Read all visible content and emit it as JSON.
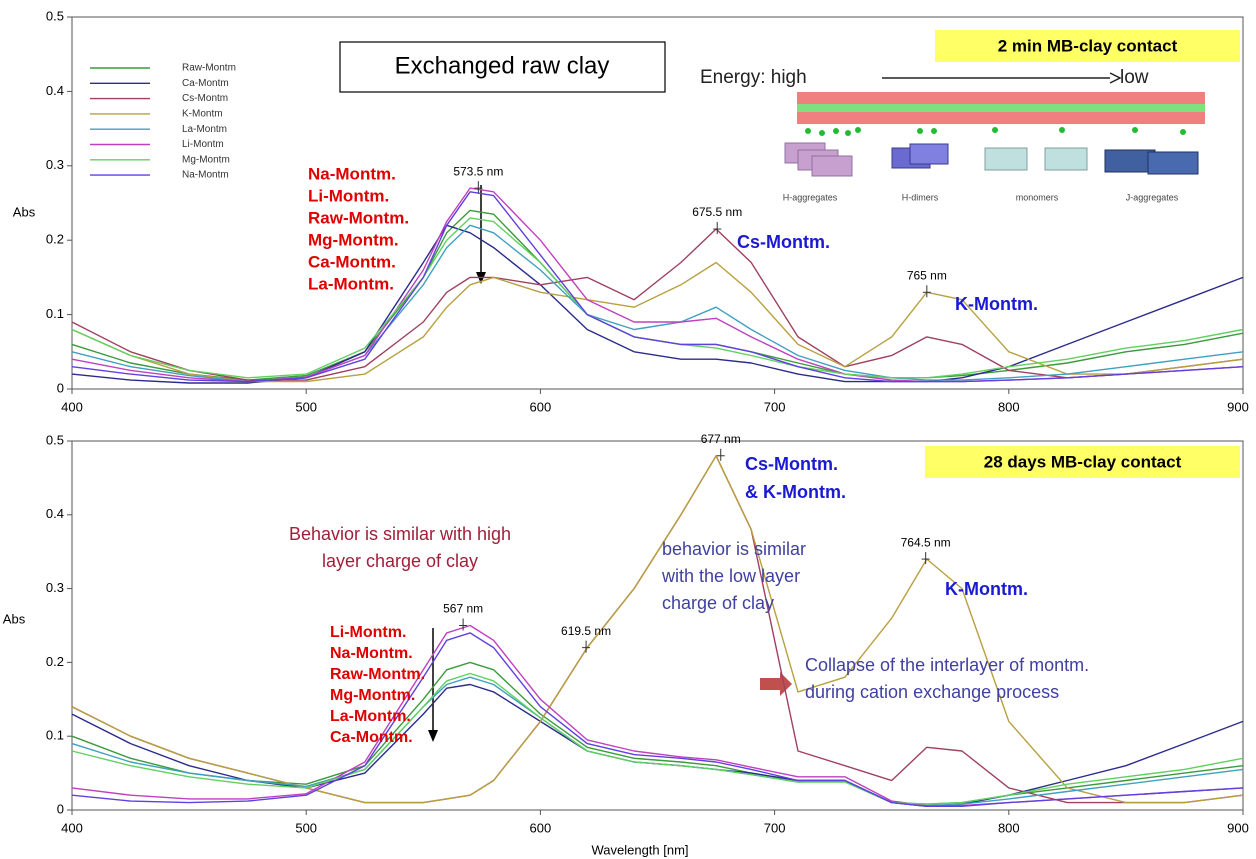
{
  "chart_data": [
    {
      "type": "line",
      "title": "Exchanged raw clay",
      "badge": "2 min MB-clay contact",
      "ylabel": "Abs",
      "xlim": [
        400,
        900
      ],
      "ylim": [
        0,
        0.5
      ],
      "xticks": [
        400,
        500,
        600,
        700,
        800,
        900
      ],
      "yticks": [
        0,
        0.1,
        0.2,
        0.3,
        0.4,
        0.5
      ],
      "x": [
        400,
        425,
        450,
        475,
        500,
        525,
        550,
        560,
        570,
        580,
        600,
        620,
        640,
        660,
        675,
        690,
        710,
        730,
        750,
        765,
        780,
        800,
        825,
        850,
        875,
        900
      ],
      "series": [
        {
          "name": "Raw-Montm",
          "color": "#3c9a3c",
          "values": [
            0.06,
            0.035,
            0.02,
            0.012,
            0.018,
            0.05,
            0.15,
            0.21,
            0.24,
            0.235,
            0.17,
            0.1,
            0.07,
            0.06,
            0.06,
            0.05,
            0.035,
            0.02,
            0.015,
            0.015,
            0.018,
            0.025,
            0.035,
            0.05,
            0.06,
            0.075
          ]
        },
        {
          "name": "Ca-Montm",
          "color": "#2b2b8c",
          "values": [
            0.02,
            0.012,
            0.008,
            0.008,
            0.015,
            0.05,
            0.17,
            0.22,
            0.21,
            0.19,
            0.14,
            0.08,
            0.05,
            0.04,
            0.04,
            0.035,
            0.02,
            0.01,
            0.01,
            0.01,
            0.015,
            0.03,
            0.06,
            0.09,
            0.12,
            0.15
          ]
        },
        {
          "name": "Cs-Montm",
          "color": "#a04060",
          "values": [
            0.09,
            0.05,
            0.025,
            0.012,
            0.012,
            0.03,
            0.09,
            0.13,
            0.15,
            0.15,
            0.14,
            0.15,
            0.12,
            0.17,
            0.215,
            0.17,
            0.07,
            0.03,
            0.045,
            0.07,
            0.06,
            0.025,
            0.015,
            0.02,
            0.03,
            0.04
          ]
        },
        {
          "name": "K-Montm",
          "color": "#b8a040",
          "values": [
            0.08,
            0.045,
            0.02,
            0.01,
            0.01,
            0.02,
            0.07,
            0.11,
            0.14,
            0.15,
            0.13,
            0.12,
            0.11,
            0.14,
            0.17,
            0.13,
            0.06,
            0.03,
            0.07,
            0.13,
            0.12,
            0.05,
            0.02,
            0.02,
            0.03,
            0.04
          ]
        },
        {
          "name": "La-Montm",
          "color": "#40a0c0",
          "values": [
            0.05,
            0.03,
            0.018,
            0.01,
            0.016,
            0.045,
            0.14,
            0.19,
            0.22,
            0.21,
            0.16,
            0.1,
            0.08,
            0.09,
            0.11,
            0.08,
            0.045,
            0.025,
            0.015,
            0.012,
            0.012,
            0.015,
            0.02,
            0.03,
            0.04,
            0.05
          ]
        },
        {
          "name": "Li-Montm",
          "color": "#c040c0",
          "values": [
            0.04,
            0.025,
            0.015,
            0.01,
            0.016,
            0.045,
            0.16,
            0.225,
            0.27,
            0.265,
            0.2,
            0.12,
            0.09,
            0.09,
            0.095,
            0.07,
            0.04,
            0.02,
            0.012,
            0.01,
            0.01,
            0.012,
            0.015,
            0.02,
            0.025,
            0.03
          ]
        },
        {
          "name": "Mg-Montm",
          "color": "#60d060",
          "values": [
            0.08,
            0.045,
            0.025,
            0.015,
            0.02,
            0.055,
            0.15,
            0.2,
            0.23,
            0.225,
            0.17,
            0.1,
            0.07,
            0.06,
            0.055,
            0.045,
            0.03,
            0.02,
            0.015,
            0.015,
            0.02,
            0.03,
            0.04,
            0.055,
            0.065,
            0.08
          ]
        },
        {
          "name": "Na-Montm",
          "color": "#6040e0",
          "values": [
            0.03,
            0.02,
            0.012,
            0.01,
            0.015,
            0.04,
            0.15,
            0.22,
            0.265,
            0.26,
            0.18,
            0.1,
            0.07,
            0.06,
            0.06,
            0.05,
            0.03,
            0.015,
            0.01,
            0.01,
            0.01,
            0.012,
            0.015,
            0.02,
            0.025,
            0.03
          ]
        }
      ],
      "peaks": [
        {
          "x": 573.5,
          "y": 0.27,
          "label": "573.5 nm"
        },
        {
          "x": 675.5,
          "y": 0.215,
          "label": "675.5 nm"
        },
        {
          "x": 765,
          "y": 0.13,
          "label": "765 nm"
        }
      ],
      "notes": [
        {
          "lines": [
            "Na-Montm.",
            "Li-Montm.",
            "Raw-Montm.",
            "Mg-Montm.",
            "Ca-Montm.",
            "La-Montm."
          ],
          "color": "#e00000"
        },
        {
          "lines": [
            "Cs-Montm."
          ],
          "color": "#1a1ad0"
        },
        {
          "lines": [
            "K-Montm."
          ],
          "color": "#1a1ad0"
        },
        {
          "lines": [
            "Energy: high"
          ],
          "color": "#222222"
        },
        {
          "lines": [
            "low"
          ],
          "color": "#222222"
        },
        {
          "lines": [
            "H-aggregates"
          ],
          "color": "#444444"
        },
        {
          "lines": [
            "H-dimers"
          ],
          "color": "#444444"
        },
        {
          "lines": [
            "monomers"
          ],
          "color": "#444444"
        },
        {
          "lines": [
            "J-aggregates"
          ],
          "color": "#444444"
        }
      ]
    },
    {
      "type": "line",
      "badge": "28 days MB-clay contact",
      "ylabel": "Abs",
      "xlabel": "Wavelength [nm]",
      "xlim": [
        400,
        900
      ],
      "ylim": [
        0,
        0.5
      ],
      "xticks": [
        400,
        500,
        600,
        700,
        800,
        900
      ],
      "yticks": [
        0,
        0.1,
        0.2,
        0.3,
        0.4,
        0.5
      ],
      "x": [
        400,
        425,
        450,
        475,
        500,
        525,
        550,
        560,
        570,
        580,
        600,
        620,
        640,
        660,
        675,
        690,
        710,
        730,
        750,
        765,
        780,
        800,
        825,
        850,
        875,
        900
      ],
      "series": [
        {
          "color": "#3c9a3c",
          "values": [
            0.1,
            0.07,
            0.05,
            0.04,
            0.035,
            0.06,
            0.15,
            0.19,
            0.2,
            0.19,
            0.13,
            0.085,
            0.07,
            0.065,
            0.06,
            0.05,
            0.04,
            0.04,
            0.01,
            0.008,
            0.01,
            0.02,
            0.03,
            0.04,
            0.05,
            0.06
          ]
        },
        {
          "color": "#2b2b8c",
          "values": [
            0.13,
            0.09,
            0.06,
            0.04,
            0.03,
            0.05,
            0.13,
            0.165,
            0.17,
            0.16,
            0.12,
            0.08,
            0.065,
            0.06,
            0.055,
            0.05,
            0.04,
            0.04,
            0.01,
            0.005,
            0.008,
            0.02,
            0.04,
            0.06,
            0.09,
            0.12
          ]
        },
        {
          "color": "#a04060",
          "values": [
            0.14,
            0.1,
            0.07,
            0.05,
            0.03,
            0.01,
            0.01,
            0.015,
            0.02,
            0.04,
            0.12,
            0.22,
            0.3,
            0.4,
            0.48,
            0.38,
            0.08,
            0.06,
            0.04,
            0.085,
            0.08,
            0.03,
            0.01,
            0.01,
            0.01,
            0.02
          ]
        },
        {
          "color": "#b8a040",
          "values": [
            0.14,
            0.1,
            0.07,
            0.05,
            0.03,
            0.01,
            0.01,
            0.015,
            0.02,
            0.04,
            0.12,
            0.22,
            0.3,
            0.4,
            0.48,
            0.38,
            0.16,
            0.18,
            0.26,
            0.34,
            0.3,
            0.12,
            0.03,
            0.01,
            0.01,
            0.02
          ]
        },
        {
          "color": "#40a0c0",
          "values": [
            0.09,
            0.065,
            0.05,
            0.04,
            0.032,
            0.055,
            0.14,
            0.17,
            0.18,
            0.17,
            0.125,
            0.08,
            0.065,
            0.06,
            0.055,
            0.048,
            0.038,
            0.04,
            0.01,
            0.006,
            0.008,
            0.015,
            0.025,
            0.035,
            0.045,
            0.055
          ]
        },
        {
          "color": "#c040c0",
          "values": [
            0.03,
            0.02,
            0.015,
            0.015,
            0.022,
            0.065,
            0.19,
            0.24,
            0.25,
            0.23,
            0.15,
            0.095,
            0.08,
            0.072,
            0.068,
            0.058,
            0.045,
            0.045,
            0.012,
            0.006,
            0.006,
            0.01,
            0.015,
            0.02,
            0.025,
            0.03
          ]
        },
        {
          "color": "#60d060",
          "values": [
            0.08,
            0.06,
            0.045,
            0.035,
            0.03,
            0.055,
            0.14,
            0.175,
            0.185,
            0.175,
            0.125,
            0.08,
            0.065,
            0.06,
            0.055,
            0.048,
            0.038,
            0.038,
            0.01,
            0.008,
            0.01,
            0.02,
            0.035,
            0.045,
            0.055,
            0.07
          ]
        },
        {
          "color": "#6040e0",
          "values": [
            0.02,
            0.012,
            0.01,
            0.012,
            0.02,
            0.06,
            0.18,
            0.23,
            0.24,
            0.22,
            0.14,
            0.09,
            0.075,
            0.07,
            0.065,
            0.055,
            0.04,
            0.04,
            0.01,
            0.005,
            0.005,
            0.01,
            0.015,
            0.02,
            0.025,
            0.03
          ]
        }
      ],
      "peaks": [
        {
          "x": 567,
          "y": 0.25,
          "label": "567 nm"
        },
        {
          "x": 619.5,
          "y": 0.22,
          "label": "619.5 nm"
        },
        {
          "x": 677,
          "y": 0.48,
          "label": "677 nm"
        },
        {
          "x": 764.5,
          "y": 0.34,
          "label": "764.5 nm"
        }
      ],
      "notes": [
        {
          "lines": [
            "Li-Montm.",
            "Na-Montm.",
            "Raw-Montm.",
            "Mg-Montm.",
            "La-Montm.",
            "Ca-Montm."
          ],
          "color": "#e00000"
        },
        {
          "lines": [
            "Behavior is similar with high",
            "layer charge of clay"
          ],
          "color": "#a0203a"
        },
        {
          "lines": [
            "behavior is similar",
            "with the low layer",
            "charge of clay"
          ],
          "color": "#4040a0"
        },
        {
          "lines": [
            "Cs-Montm.",
            "& K-Montm."
          ],
          "color": "#1a1ad0"
        },
        {
          "lines": [
            "K-Montm."
          ],
          "color": "#1a1ad0"
        },
        {
          "lines": [
            "Collapse of the interlayer of montm.",
            "during cation exchange process"
          ],
          "color": "#4040a0"
        }
      ]
    }
  ]
}
